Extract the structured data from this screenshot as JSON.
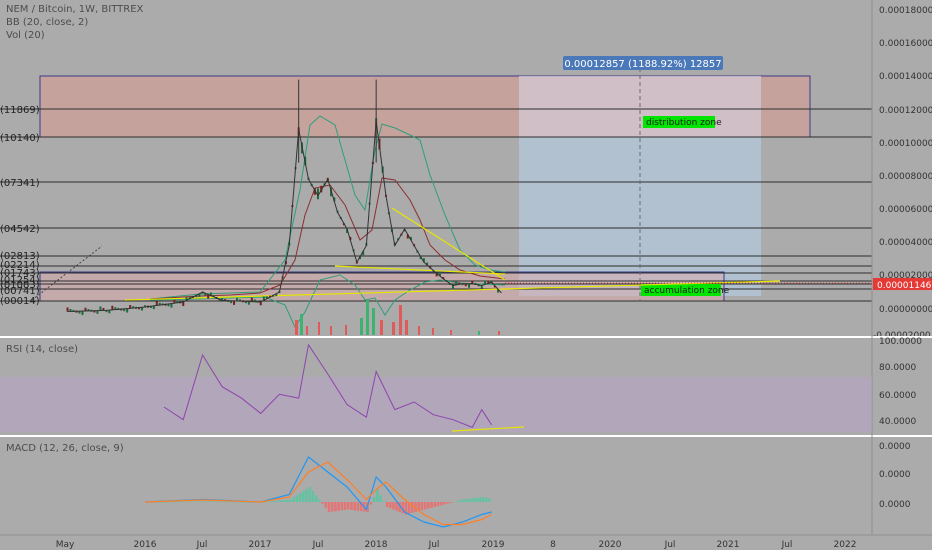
{
  "header": {
    "title": "NEM / Bitcoin, 1W, BITTREX",
    "indicator_bb": "BB (20, close, 2)",
    "indicator_vol": "Vol (20)"
  },
  "rsi_panel": {
    "label": "RSI (14, close)",
    "ticks": [
      "100.0000",
      "80.0000",
      "60.0000",
      "40.0000"
    ]
  },
  "macd_panel": {
    "label": "MACD (12, 26, close, 9)",
    "ticks": [
      "0.0000",
      "0.0000",
      "0.0000"
    ]
  },
  "price_axis": {
    "ticks": [
      "0.00018000",
      "0.00016000",
      "0.00014000",
      "0.00012000",
      "0.00010000",
      "0.00008000",
      "0.00006000",
      "0.00004000",
      "0.00002000",
      "0.00000000",
      "-0.00002000"
    ],
    "current_price": "0.00001146",
    "current_price_color": "#e53935"
  },
  "time_axis": {
    "labels": [
      "May",
      "2016",
      "Jul",
      "2017",
      "Jul",
      "2018",
      "Jul",
      "2019",
      "8",
      "2020",
      "Jul",
      "2021",
      "Jul",
      "2022"
    ]
  },
  "fib_labels": [
    "(11869)",
    "(10140)",
    "(07341)",
    "(04542)",
    "(02813)",
    "(02214)",
    "(01743)",
    "(01254)",
    "(01083)",
    "(00741)",
    "(00014)"
  ],
  "annotations": {
    "measure": "0.00012857 (1188.92%) 12857",
    "distribution": "distribution zone",
    "accumulation": "accumulation zone"
  },
  "colors": {
    "background": "#ababab",
    "price_line": "#333333",
    "rsi_line": "#8e44ad",
    "macd_line": "#2196f3",
    "signal_line": "#ff7f27",
    "zone_label_bg": "#00e600",
    "trendline": "#e6e600"
  },
  "chart_data": [
    {
      "type": "line",
      "title": "NEM / Bitcoin, 1W, BITTREX",
      "series": [
        {
          "x": [
            "2015-05",
            "2015-09",
            "2016-01",
            "2016-05",
            "2016-07",
            "2016-09",
            "2017-01",
            "2017-03",
            "2017-04",
            "2017-05",
            "2017-06",
            "2017-07",
            "2017-08",
            "2017-09",
            "2017-10",
            "2017-11",
            "2017-12",
            "2018-01",
            "2018-02",
            "2018-03",
            "2018-04",
            "2018-05",
            "2018-06",
            "2018-07",
            "2018-08",
            "2018-09",
            "2018-10",
            "2018-11",
            "2018-12",
            "2019-01",
            "2019-02"
          ],
          "values": [
            3e-07,
            1e-06,
            3e-06,
            6e-06,
            1.2e-05,
            7e-06,
            6e-06,
            1.2e-05,
            4e-05,
            0.00011,
            8e-05,
            7e-05,
            8e-05,
            6e-05,
            5e-05,
            3e-05,
            4e-05,
            0.000115,
            7e-05,
            4e-05,
            5e-05,
            4e-05,
            3e-05,
            2.5e-05,
            2e-05,
            1.6e-05,
            1.7e-05,
            1.7e-05,
            1.6e-05,
            1.8e-05,
            1.146e-05
          ]
        }
      ],
      "ylim": [
        -2e-05,
        0.00018
      ],
      "xlim": [
        "2015-04",
        "2022-05"
      ],
      "grid": false,
      "zones": [
        {
          "label": "distribution zone",
          "from": 0.0001014,
          "to": 0.00014
        },
        {
          "label": "accumulation zone",
          "from": 1e-07,
          "to": 1.7e-05
        }
      ]
    },
    {
      "type": "line",
      "title": "RSI (14, close)",
      "x": [
        "2016-03",
        "2016-05",
        "2016-07",
        "2016-09",
        "2016-11",
        "2017-01",
        "2017-03",
        "2017-05",
        "2017-06",
        "2017-08",
        "2017-10",
        "2017-12",
        "2018-01",
        "2018-03",
        "2018-05",
        "2018-07",
        "2018-09",
        "2018-11",
        "2018-12",
        "2019-01"
      ],
      "series": [
        {
          "values": [
            48,
            38,
            89,
            64,
            55,
            43,
            58,
            55,
            97,
            74,
            50,
            40,
            76,
            46,
            52,
            42,
            38,
            32,
            46,
            34
          ]
        }
      ],
      "ylim": [
        30,
        100
      ]
    },
    {
      "type": "line",
      "title": "MACD (12, 26, close, 9)",
      "x": [
        "2016-01",
        "2016-07",
        "2017-01",
        "2017-04",
        "2017-06",
        "2017-08",
        "2017-10",
        "2017-12",
        "2018-01",
        "2018-02",
        "2018-04",
        "2018-06",
        "2018-08",
        "2018-10",
        "2018-12",
        "2019-01"
      ],
      "series": [
        {
          "values": [
            0,
            1e-06,
            0,
            3e-06,
            1.8e-05,
            1.2e-05,
            6e-06,
            -3e-06,
            1e-05,
            6e-06,
            -4e-06,
            -8e-06,
            -1e-05,
            -8e-06,
            -5e-06,
            -4e-06
          ]
        },
        {
          "values": [
            0,
            8e-07,
            0,
            2e-06,
            1.2e-05,
            1.6e-05,
            9e-06,
            1e-06,
            5e-06,
            8e-06,
            1e-06,
            -5e-06,
            -9e-06,
            -9e-06,
            -7e-06,
            -5e-06
          ]
        }
      ]
    }
  ]
}
